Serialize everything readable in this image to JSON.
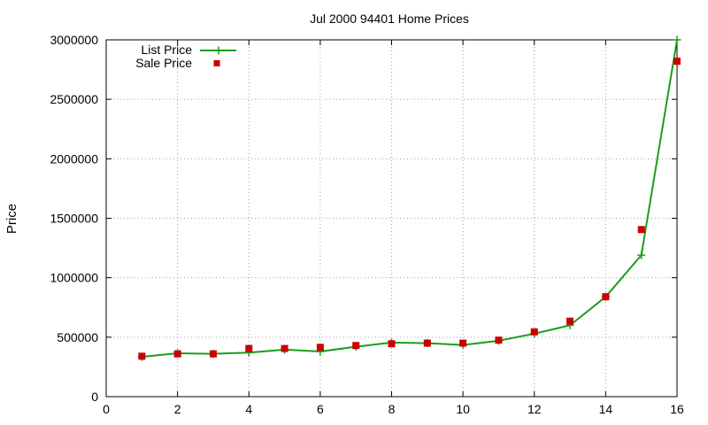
{
  "chart_data": {
    "type": "line",
    "title": "Jul 2000 94401 Home Prices",
    "xlabel": "",
    "ylabel": "Price",
    "xlim": [
      0,
      16
    ],
    "ylim": [
      0,
      3000000
    ],
    "x_ticks": [
      0,
      2,
      4,
      6,
      8,
      10,
      12,
      14,
      16
    ],
    "y_ticks": [
      0,
      500000,
      1000000,
      1500000,
      2000000,
      2500000,
      3000000
    ],
    "grid": true,
    "legend_position": "top-left",
    "series": [
      {
        "name": "List Price",
        "style": "line-with-plus-markers",
        "color": "#1a9e1a",
        "x": [
          1,
          2,
          3,
          4,
          5,
          6,
          7,
          8,
          9,
          10,
          11,
          12,
          13,
          14,
          15,
          16
        ],
        "values": [
          335000,
          365000,
          360000,
          370000,
          395000,
          380000,
          420000,
          455000,
          450000,
          435000,
          470000,
          530000,
          600000,
          840000,
          1190000,
          3000000
        ]
      },
      {
        "name": "Sale Price",
        "style": "square-markers",
        "color": "#cc0000",
        "x": [
          1,
          2,
          3,
          4,
          5,
          6,
          7,
          8,
          9,
          10,
          11,
          12,
          13,
          14,
          15,
          16
        ],
        "values": [
          340000,
          360000,
          360000,
          405000,
          405000,
          415000,
          430000,
          445000,
          450000,
          450000,
          475000,
          545000,
          635000,
          840000,
          1405000,
          2820000
        ]
      }
    ]
  }
}
